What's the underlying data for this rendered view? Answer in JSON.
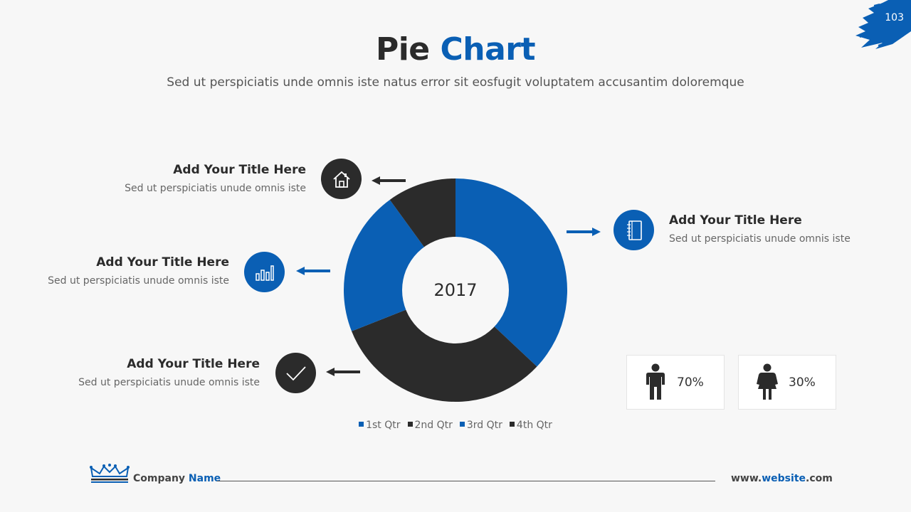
{
  "page_number": "103",
  "header": {
    "title_part1": "Pie",
    "title_part2": "Chart",
    "subtitle": "Sed ut perspiciatis unde omnis iste natus error sit eosfugit voluptatem accusantim doloremque"
  },
  "callouts": [
    {
      "title": "Add Your Title Here",
      "desc": "Sed ut perspiciatis unude omnis iste",
      "icon": "home-icon"
    },
    {
      "title": "Add Your Title Here",
      "desc": "Sed ut perspiciatis unude omnis iste",
      "icon": "bar-chart-icon"
    },
    {
      "title": "Add Your Title Here",
      "desc": "Sed ut perspiciatis unude omnis iste",
      "icon": "checkmark-icon"
    },
    {
      "title": "Add Your Title Here",
      "desc": "Sed ut perspiciatis unude omnis iste",
      "icon": "notebook-icon"
    }
  ],
  "chart_data": {
    "type": "pie",
    "center_label": "2017",
    "categories": [
      "1st Qtr",
      "2nd Qtr",
      "3rd Qtr",
      "4th Qtr"
    ],
    "values": [
      37,
      32,
      21,
      10
    ],
    "colors": [
      "#0a5fb4",
      "#2b2b2b",
      "#0a5fb4",
      "#2b2b2b"
    ],
    "legend_position": "bottom"
  },
  "stats": [
    {
      "icon": "male-figure-icon",
      "value": "70%"
    },
    {
      "icon": "female-figure-icon",
      "value": "30%"
    }
  ],
  "footer": {
    "company_part1": "Company",
    "company_part2": "Name",
    "website_part1": "www.",
    "website_part2": "website",
    "website_part3": ".com"
  },
  "colors": {
    "accent": "#0a5fb4",
    "dark": "#2b2b2b"
  }
}
